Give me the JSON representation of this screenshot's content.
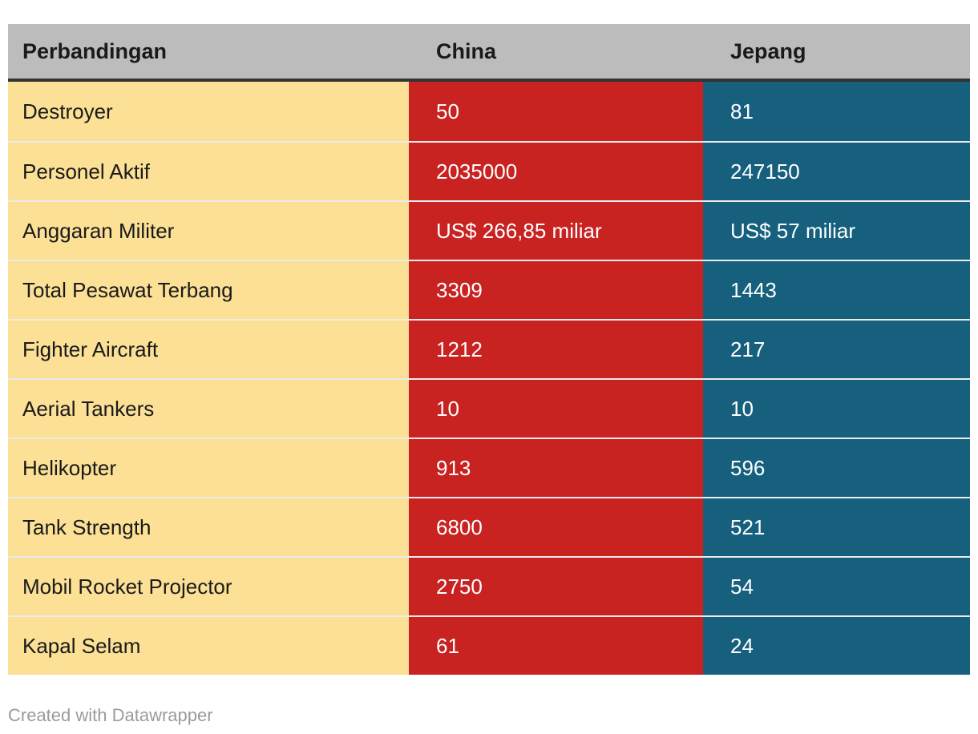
{
  "chart_data": {
    "type": "table",
    "columns": [
      "Perbandingan",
      "China",
      "Jepang"
    ],
    "rows": [
      {
        "label": "Destroyer",
        "china": "50",
        "jepang": "81"
      },
      {
        "label": "Personel Aktif",
        "china": "2035000",
        "jepang": "247150"
      },
      {
        "label": "Anggaran Militer",
        "china": "US$ 266,85 miliar",
        "jepang": "US$ 57 miliar"
      },
      {
        "label": "Total Pesawat Terbang",
        "china": "3309",
        "jepang": "1443"
      },
      {
        "label": "Fighter Aircraft",
        "china": "1212",
        "jepang": "217"
      },
      {
        "label": "Aerial Tankers",
        "china": "10",
        "jepang": "10"
      },
      {
        "label": "Helikopter",
        "china": "913",
        "jepang": "596"
      },
      {
        "label": "Tank Strength",
        "china": "6800",
        "jepang": "521"
      },
      {
        "label": "Mobil Rocket Projector",
        "china": "2750",
        "jepang": "54"
      },
      {
        "label": "Kapal Selam",
        "china": "61",
        "jepang": "24"
      }
    ],
    "legend_position": "none",
    "grid": "row-separators"
  },
  "footer": {
    "attribution": "Created with Datawrapper"
  },
  "colors": {
    "header_bg": "#bcbcbc",
    "header_border": "#333333",
    "label_bg": "#fbe095",
    "china_bg": "#c82221",
    "jepang_bg": "#16607e",
    "label_text": "#1a1a1a",
    "value_text": "#ffffff",
    "footer_text": "#9b9b9b"
  }
}
